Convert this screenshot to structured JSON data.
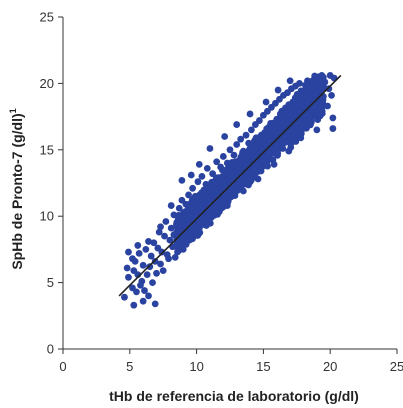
{
  "chart_data": {
    "type": "scatter",
    "xlabel": "tHb de referencia de laboratorio (g/dl)",
    "ylabel": "SpHb de Pronto-7 (g/dl)",
    "ylabel_sup": "1",
    "xlim": [
      0,
      25
    ],
    "ylim": [
      0,
      25
    ],
    "x_ticks": [
      "0",
      "5",
      "10",
      "15",
      "20",
      "25"
    ],
    "y_ticks": [
      "0",
      "5",
      "10",
      "15",
      "20",
      "25"
    ],
    "grid": false,
    "point_color": "#2b43a0",
    "line_color": "#222222",
    "fit_line": {
      "x": [
        4.2,
        20.8
      ],
      "y": [
        4.0,
        20.6
      ]
    },
    "point_cloud": {
      "description_of_range": "dense cloud along identity line from x≈5 to x≈20",
      "x_min": 4.5,
      "x_max": 20.3,
      "y_min": 3.2,
      "y_max": 20.6
    },
    "points": [
      [
        4.6,
        3.9
      ],
      [
        4.9,
        5.4
      ],
      [
        4.8,
        6.1
      ],
      [
        4.9,
        7.3
      ],
      [
        5.2,
        4.6
      ],
      [
        5.3,
        5.9
      ],
      [
        5.3,
        3.3
      ],
      [
        5.2,
        6.8
      ],
      [
        5.4,
        6.6
      ],
      [
        5.5,
        4.3
      ],
      [
        5.6,
        5.6
      ],
      [
        5.8,
        4.8
      ],
      [
        5.7,
        7.2
      ],
      [
        5.9,
        5.1
      ],
      [
        6.0,
        3.6
      ],
      [
        6.0,
        6.3
      ],
      [
        6.1,
        4.4
      ],
      [
        6.2,
        7.5
      ],
      [
        6.3,
        5.6
      ],
      [
        6.4,
        4.0
      ],
      [
        6.5,
        6.2
      ],
      [
        6.6,
        7.0
      ],
      [
        6.7,
        5.0
      ],
      [
        6.8,
        8.0
      ],
      [
        6.9,
        6.6
      ],
      [
        6.9,
        3.4
      ],
      [
        7.0,
        5.7
      ],
      [
        7.1,
        7.6
      ],
      [
        7.2,
        8.8
      ],
      [
        7.3,
        6.4
      ],
      [
        7.4,
        7.3
      ],
      [
        7.5,
        5.9
      ],
      [
        7.6,
        8.5
      ],
      [
        7.7,
        9.6
      ],
      [
        7.8,
        7.1
      ],
      [
        7.9,
        6.8
      ],
      [
        8.0,
        8.2
      ],
      [
        8.1,
        9.1
      ],
      [
        8.2,
        7.7
      ],
      [
        8.3,
        10.1
      ],
      [
        8.3,
        8.6
      ],
      [
        8.4,
        6.9
      ],
      [
        8.5,
        9.4
      ],
      [
        8.6,
        8.0
      ],
      [
        8.7,
        10.6
      ],
      [
        8.8,
        9.0
      ],
      [
        8.9,
        11.2
      ],
      [
        9.0,
        8.5
      ],
      [
        9.1,
        9.8
      ],
      [
        9.2,
        10.9
      ],
      [
        9.3,
        8.8
      ],
      [
        9.4,
        11.6
      ],
      [
        9.5,
        10.2
      ],
      [
        9.6,
        9.3
      ],
      [
        9.7,
        12.1
      ],
      [
        9.8,
        10.7
      ],
      [
        9.9,
        11.5
      ],
      [
        10.0,
        9.6
      ],
      [
        10.1,
        12.6
      ],
      [
        10.2,
        11.0
      ],
      [
        10.3,
        10.2
      ],
      [
        10.4,
        13.0
      ],
      [
        10.5,
        11.8
      ],
      [
        10.6,
        10.8
      ],
      [
        10.7,
        12.4
      ],
      [
        10.8,
        13.6
      ],
      [
        10.9,
        11.3
      ],
      [
        11.0,
        12.0
      ],
      [
        11.1,
        10.5
      ],
      [
        11.2,
        13.2
      ],
      [
        11.3,
        12.6
      ],
      [
        11.4,
        11.5
      ],
      [
        11.5,
        14.1
      ],
      [
        11.6,
        12.9
      ],
      [
        11.7,
        11.9
      ],
      [
        11.8,
        13.7
      ],
      [
        11.9,
        12.3
      ],
      [
        12.0,
        14.5
      ],
      [
        12.1,
        13.1
      ],
      [
        12.2,
        11.7
      ],
      [
        12.3,
        14.0
      ],
      [
        12.4,
        12.8
      ],
      [
        12.5,
        15.0
      ],
      [
        12.6,
        13.5
      ],
      [
        12.7,
        12.2
      ],
      [
        12.8,
        14.6
      ],
      [
        12.9,
        13.3
      ],
      [
        13.0,
        15.4
      ],
      [
        13.1,
        12.6
      ],
      [
        13.2,
        14.2
      ],
      [
        13.3,
        15.8
      ],
      [
        13.4,
        13.7
      ],
      [
        13.5,
        14.9
      ],
      [
        13.6,
        12.9
      ],
      [
        13.7,
        16.1
      ],
      [
        13.8,
        14.4
      ],
      [
        13.9,
        15.5
      ],
      [
        14.0,
        13.6
      ],
      [
        14.1,
        16.5
      ],
      [
        14.2,
        15.0
      ],
      [
        14.3,
        14.1
      ],
      [
        14.4,
        16.9
      ],
      [
        14.5,
        15.6
      ],
      [
        14.6,
        14.6
      ],
      [
        14.7,
        17.2
      ],
      [
        14.8,
        16.0
      ],
      [
        14.9,
        15.1
      ],
      [
        15.0,
        17.6
      ],
      [
        15.1,
        16.3
      ],
      [
        15.2,
        14.9
      ],
      [
        15.3,
        17.9
      ],
      [
        15.4,
        16.7
      ],
      [
        15.5,
        15.5
      ],
      [
        15.6,
        18.2
      ],
      [
        15.7,
        17.0
      ],
      [
        15.8,
        16.0
      ],
      [
        15.9,
        18.5
      ],
      [
        16.0,
        17.3
      ],
      [
        16.1,
        16.4
      ],
      [
        16.2,
        18.8
      ],
      [
        16.3,
        17.7
      ],
      [
        16.4,
        16.8
      ],
      [
        16.5,
        19.1
      ],
      [
        16.6,
        18.0
      ],
      [
        16.7,
        17.2
      ],
      [
        16.8,
        19.3
      ],
      [
        16.9,
        18.4
      ],
      [
        17.0,
        17.5
      ],
      [
        17.1,
        19.6
      ],
      [
        17.2,
        18.6
      ],
      [
        17.3,
        17.8
      ],
      [
        17.4,
        19.8
      ],
      [
        17.5,
        18.9
      ],
      [
        17.6,
        18.1
      ],
      [
        17.7,
        20.0
      ],
      [
        17.8,
        19.2
      ],
      [
        17.9,
        18.4
      ],
      [
        18.0,
        16.8
      ],
      [
        18.1,
        19.5
      ],
      [
        18.3,
        20.2
      ],
      [
        18.4,
        18.7
      ],
      [
        18.6,
        17.6
      ],
      [
        18.7,
        19.9
      ],
      [
        18.9,
        18.9
      ],
      [
        19.0,
        16.5
      ],
      [
        19.2,
        19.4
      ],
      [
        19.4,
        17.9
      ],
      [
        19.6,
        20.1
      ],
      [
        19.8,
        18.3
      ],
      [
        20.0,
        20.6
      ],
      [
        20.1,
        19.1
      ],
      [
        20.2,
        16.6
      ],
      [
        20.2,
        17.4
      ],
      [
        19.9,
        19.6
      ],
      [
        20.3,
        20.4
      ],
      [
        9.6,
        13.1
      ],
      [
        8.9,
        12.7
      ],
      [
        10.2,
        13.9
      ],
      [
        11.0,
        15.1
      ],
      [
        12.1,
        16.0
      ],
      [
        13.0,
        16.9
      ],
      [
        14.0,
        17.7
      ],
      [
        15.2,
        18.6
      ],
      [
        16.1,
        19.5
      ],
      [
        17.0,
        20.2
      ],
      [
        9.2,
        7.9
      ],
      [
        10.0,
        8.8
      ],
      [
        11.1,
        9.9
      ],
      [
        12.3,
        10.8
      ],
      [
        13.5,
        11.9
      ],
      [
        14.6,
        12.8
      ],
      [
        15.8,
        13.9
      ],
      [
        16.9,
        14.9
      ],
      [
        17.8,
        15.9
      ],
      [
        18.5,
        16.9
      ],
      [
        7.3,
        9.2
      ],
      [
        8.1,
        10.8
      ],
      [
        9.0,
        7.5
      ],
      [
        6.4,
        8.1
      ],
      [
        5.6,
        7.8
      ]
    ]
  }
}
